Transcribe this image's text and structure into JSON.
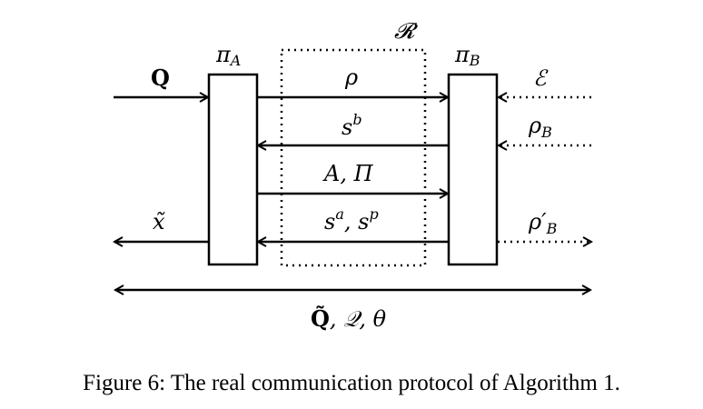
{
  "diagram": {
    "nodes": {
      "party_a": {
        "label": "π",
        "sub": "A"
      },
      "party_b": {
        "label": "π",
        "sub": "B"
      },
      "resource": {
        "label": "𝓡"
      }
    },
    "edges": {
      "q_in": {
        "label": "Q"
      },
      "rho": {
        "label": "ρ"
      },
      "s_b": {
        "label": "s",
        "sup": "b"
      },
      "a_pi": {
        "label": "A, Π"
      },
      "s_a_s_p": {
        "base1": "s",
        "sup1": "a",
        "sep": ", ",
        "base2": "s",
        "sup2": "p"
      },
      "x_out": {
        "label": "x̃"
      },
      "env_e": {
        "label": "ℰ"
      },
      "rho_b": {
        "label": "ρ",
        "sub": "B"
      },
      "rho_b_prime": {
        "label": "ρ′",
        "sub": "B"
      },
      "bottom": {
        "label1": "Q̃",
        "label2": ", 𝒬, θ"
      }
    }
  },
  "caption": "Figure 6: The real communication protocol of Algorithm 1."
}
